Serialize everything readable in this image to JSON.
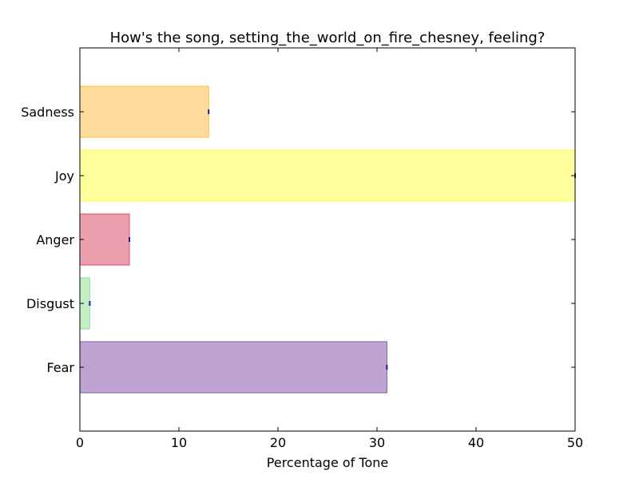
{
  "chart_data": {
    "type": "bar",
    "orientation": "horizontal",
    "title": "How's the song, setting_the_world_on_fire_chesney, feeling?",
    "xlabel": "Percentage of Tone",
    "ylabel": "",
    "categories": [
      "Fear",
      "Disgust",
      "Anger",
      "Joy",
      "Sadness"
    ],
    "values": [
      31,
      1,
      5,
      50,
      13
    ],
    "colors": [
      "#9b72b8",
      "#a3e3a3",
      "#e06a80",
      "#ffff66",
      "#ffc966"
    ],
    "edge_colors": [
      "#7d4fa3",
      "#8fd68f",
      "#d94060",
      "#ffff33",
      "#ffb733"
    ],
    "bar_opacity": 0.65,
    "xlim": [
      0,
      50
    ],
    "xticks": [
      "0",
      "10",
      "20",
      "30",
      "40",
      "50"
    ],
    "grid": false,
    "legend": false
  }
}
